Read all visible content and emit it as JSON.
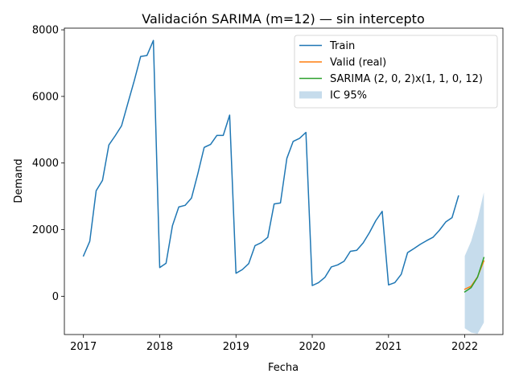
{
  "chart_data": {
    "type": "line",
    "title": "Validación SARIMA (m=12) — sin intercepto",
    "xlabel": "Fecha",
    "ylabel": "Demand",
    "xlim": [
      2016.75,
      2022.5
    ],
    "ylim": [
      -1150,
      8050
    ],
    "x_ticks": [
      {
        "value": 2017,
        "label": "2017"
      },
      {
        "value": 2018,
        "label": "2018"
      },
      {
        "value": 2019,
        "label": "2019"
      },
      {
        "value": 2020,
        "label": "2020"
      },
      {
        "value": 2021,
        "label": "2021"
      },
      {
        "value": 2022,
        "label": "2022"
      }
    ],
    "y_ticks": [
      {
        "value": 0,
        "label": "0"
      },
      {
        "value": 2000,
        "label": "2000"
      },
      {
        "value": 4000,
        "label": "4000"
      },
      {
        "value": 6000,
        "label": "6000"
      },
      {
        "value": 8000,
        "label": "8000"
      }
    ],
    "grid": false,
    "legend_position": "top-right",
    "series": [
      {
        "name": "Train",
        "color": "#1f77b4",
        "kind": "line",
        "x": [
          2017.0,
          2017.083,
          2017.167,
          2017.25,
          2017.333,
          2017.417,
          2017.5,
          2017.583,
          2017.667,
          2017.75,
          2017.833,
          2017.917,
          2018.0,
          2018.083,
          2018.167,
          2018.25,
          2018.333,
          2018.417,
          2018.5,
          2018.583,
          2018.667,
          2018.75,
          2018.833,
          2018.917,
          2019.0,
          2019.083,
          2019.167,
          2019.25,
          2019.333,
          2019.417,
          2019.5,
          2019.583,
          2019.667,
          2019.75,
          2019.833,
          2019.917,
          2020.0,
          2020.083,
          2020.167,
          2020.25,
          2020.333,
          2020.417,
          2020.5,
          2020.583,
          2020.667,
          2020.75,
          2020.833,
          2020.917,
          2021.0,
          2021.083,
          2021.167,
          2021.25,
          2021.333,
          2021.417,
          2021.5,
          2021.583,
          2021.667,
          2021.75,
          2021.833,
          2021.917
        ],
        "y": [
          1210,
          1650,
          3170,
          3480,
          4540,
          4820,
          5120,
          5800,
          6480,
          7200,
          7230,
          7680,
          860,
          990,
          2120,
          2680,
          2730,
          2950,
          3680,
          4470,
          4560,
          4830,
          4830,
          5440,
          690,
          800,
          980,
          1520,
          1610,
          1770,
          2770,
          2800,
          4140,
          4650,
          4740,
          4920,
          320,
          410,
          570,
          880,
          940,
          1050,
          1350,
          1380,
          1600,
          1910,
          2270,
          2550,
          340,
          410,
          660,
          1310,
          1430,
          1560,
          1670,
          1770,
          1980,
          2230,
          2360,
          3010
        ]
      },
      {
        "name": "Valid (real)",
        "color": "#ff7f0e",
        "kind": "line",
        "x": [
          2022.0,
          2022.083,
          2022.167,
          2022.25
        ],
        "y": [
          210,
          300,
          580,
          1060
        ]
      },
      {
        "name": "SARIMA (2, 0, 2)x(1, 1, 0, 12)",
        "color": "#2ca02c",
        "kind": "line",
        "x": [
          2022.0,
          2022.083,
          2022.167,
          2022.25
        ],
        "y": [
          130,
          260,
          570,
          1160
        ]
      },
      {
        "name": "IC 95%",
        "color": "#c6dcec",
        "kind": "band",
        "x": [
          2022.0,
          2022.083,
          2022.167,
          2022.25
        ],
        "lower": [
          -960,
          -1090,
          -1130,
          -790
        ],
        "upper": [
          1210,
          1650,
          2310,
          3120
        ]
      }
    ]
  }
}
